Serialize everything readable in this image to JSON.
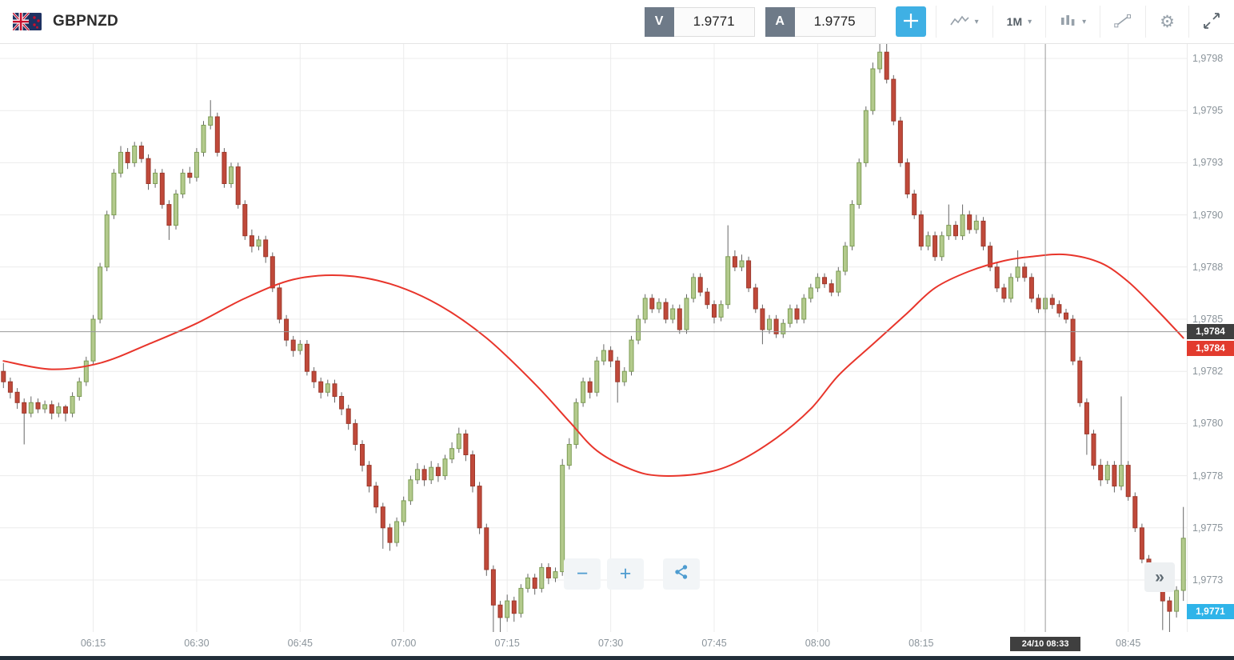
{
  "header": {
    "symbol": "GBPNZD",
    "sell_label": "V",
    "sell_price": "1.9771",
    "ask_label": "A",
    "ask_price": "1.9775",
    "timeframe": "1M"
  },
  "icons": {
    "caret": "▾",
    "gear": "⚙",
    "scroll_right": "»",
    "zoom_out": "−",
    "zoom_in": "+"
  },
  "chart_data": {
    "type": "candlestick",
    "symbol": "GBPNZD",
    "interval": "1M",
    "start_time": "06:02",
    "interval_minutes": 1,
    "price_base": 1.97,
    "price_unit": 0.0001,
    "note": "OHLC and pips values are pips above price_base: price = 1.97 + v/10000",
    "colors": {
      "up_fill": "#b3ca8c",
      "up_stroke": "#7d9d55",
      "down_fill": "#c0493a",
      "down_stroke": "#9c392c",
      "wick": "#666666",
      "ma_line": "#e8352b",
      "grid": "#ececec",
      "crosshair": "#999999",
      "badge_dark_bg": "#3f3f3f",
      "badge_red_bg": "#e23b2e",
      "badge_blue_bg": "#2fb4e9",
      "accent_blue": "#3fb0e4"
    },
    "y_axis": [
      {
        "label": "1,9798",
        "pips": 98.0
      },
      {
        "label": "1,9795",
        "pips": 95.5
      },
      {
        "label": "1,9793",
        "pips": 93.0
      },
      {
        "label": "1,9790",
        "pips": 90.5
      },
      {
        "label": "1,9788",
        "pips": 88.0
      },
      {
        "label": "1,9785",
        "pips": 85.5
      },
      {
        "label": "1,9782",
        "pips": 83.0
      },
      {
        "label": "1,9780",
        "pips": 80.5
      },
      {
        "label": "1,9778",
        "pips": 78.0
      },
      {
        "label": "1,9775",
        "pips": 75.5
      },
      {
        "label": "1,9773",
        "pips": 73.0
      }
    ],
    "x_axis_labels": [
      "06:15",
      "06:30",
      "06:45",
      "07:00",
      "07:15",
      "07:30",
      "07:45",
      "08:00",
      "08:15",
      "08:45"
    ],
    "x_grid": [
      "06:15",
      "06:30",
      "06:45",
      "07:00",
      "07:15",
      "07:30",
      "07:45",
      "08:00",
      "08:15",
      "08:30",
      "08:45"
    ],
    "crosshair": {
      "time": "08:33",
      "label": "24/10 08:33",
      "price_pips": 84.9,
      "price_label": "1,9784"
    },
    "red_marker": {
      "pips": 84.1,
      "label": "1,9784"
    },
    "sell_marker": {
      "pips": 71.5,
      "label": "1,9771"
    },
    "ma_line": {
      "name": "moving-average",
      "color": "#e8352b",
      "points": [
        [
          "06:02",
          83.5
        ],
        [
          "06:09",
          83.1
        ],
        [
          "06:16",
          83.4
        ],
        [
          "06:23",
          84.3
        ],
        [
          "06:30",
          85.3
        ],
        [
          "06:37",
          86.5
        ],
        [
          "06:44",
          87.4
        ],
        [
          "06:51",
          87.6
        ],
        [
          "06:58",
          87.2
        ],
        [
          "07:05",
          86.2
        ],
        [
          "07:12",
          84.6
        ],
        [
          "07:19",
          82.4
        ],
        [
          "07:24",
          80.6
        ],
        [
          "07:28",
          79.2
        ],
        [
          "07:33",
          78.3
        ],
        [
          "07:37",
          78.0
        ],
        [
          "07:43",
          78.1
        ],
        [
          "07:48",
          78.6
        ],
        [
          "07:54",
          79.8
        ],
        [
          "07:59",
          81.2
        ],
        [
          "08:03",
          82.8
        ],
        [
          "08:08",
          84.3
        ],
        [
          "08:13",
          85.8
        ],
        [
          "08:17",
          87.0
        ],
        [
          "08:22",
          87.8
        ],
        [
          "08:27",
          88.3
        ],
        [
          "08:31",
          88.5
        ],
        [
          "08:36",
          88.6
        ],
        [
          "08:41",
          88.2
        ],
        [
          "08:45",
          87.3
        ],
        [
          "08:49",
          86.0
        ],
        [
          "08:53",
          84.6
        ]
      ]
    },
    "candles": [
      [
        83.0,
        83.4,
        82.2,
        82.5
      ],
      [
        82.5,
        82.7,
        81.7,
        82.0
      ],
      [
        82.0,
        82.2,
        81.2,
        81.5
      ],
      [
        81.5,
        81.7,
        79.5,
        81.0
      ],
      [
        81.0,
        81.8,
        80.8,
        81.5
      ],
      [
        81.5,
        81.7,
        81.0,
        81.2
      ],
      [
        81.2,
        81.6,
        81.0,
        81.4
      ],
      [
        81.4,
        81.6,
        80.7,
        81.0
      ],
      [
        81.0,
        81.5,
        80.8,
        81.3
      ],
      [
        81.3,
        81.4,
        80.6,
        81.0
      ],
      [
        81.0,
        82.0,
        80.8,
        81.8
      ],
      [
        81.8,
        82.7,
        81.6,
        82.5
      ],
      [
        82.5,
        83.7,
        82.3,
        83.5
      ],
      [
        83.5,
        85.7,
        83.3,
        85.5
      ],
      [
        85.5,
        88.2,
        85.3,
        88.0
      ],
      [
        88.0,
        90.7,
        87.8,
        90.5
      ],
      [
        90.5,
        92.7,
        90.3,
        92.5
      ],
      [
        92.5,
        93.8,
        92.3,
        93.5
      ],
      [
        93.5,
        93.7,
        92.7,
        93.0
      ],
      [
        93.0,
        94.0,
        92.8,
        93.8
      ],
      [
        93.8,
        94.0,
        93.0,
        93.2
      ],
      [
        93.2,
        93.4,
        91.7,
        92.0
      ],
      [
        92.0,
        92.7,
        91.8,
        92.5
      ],
      [
        92.5,
        92.7,
        90.8,
        91.0
      ],
      [
        91.0,
        91.2,
        89.3,
        90.0
      ],
      [
        90.0,
        91.7,
        89.8,
        91.5
      ],
      [
        91.5,
        92.7,
        91.3,
        92.5
      ],
      [
        92.5,
        92.8,
        92.0,
        92.3
      ],
      [
        92.3,
        93.7,
        92.1,
        93.5
      ],
      [
        93.5,
        95.0,
        93.3,
        94.8
      ],
      [
        94.8,
        96.0,
        94.6,
        95.2
      ],
      [
        95.2,
        95.4,
        93.3,
        93.5
      ],
      [
        93.5,
        93.7,
        91.8,
        92.0
      ],
      [
        92.0,
        93.0,
        91.8,
        92.8
      ],
      [
        92.8,
        93.0,
        90.8,
        91.0
      ],
      [
        91.0,
        91.2,
        89.3,
        89.5
      ],
      [
        89.5,
        89.8,
        88.7,
        89.0
      ],
      [
        89.0,
        89.5,
        88.8,
        89.3
      ],
      [
        89.3,
        89.5,
        88.2,
        88.5
      ],
      [
        88.5,
        88.7,
        86.8,
        87.0
      ],
      [
        87.0,
        87.2,
        85.3,
        85.5
      ],
      [
        85.5,
        85.7,
        84.2,
        84.5
      ],
      [
        84.5,
        84.7,
        83.7,
        84.0
      ],
      [
        84.0,
        84.5,
        83.8,
        84.3
      ],
      [
        84.3,
        84.5,
        82.8,
        83.0
      ],
      [
        83.0,
        83.2,
        82.2,
        82.5
      ],
      [
        82.5,
        82.7,
        81.7,
        82.0
      ],
      [
        82.0,
        82.6,
        81.8,
        82.4
      ],
      [
        82.4,
        82.6,
        81.5,
        81.8
      ],
      [
        81.8,
        82.0,
        80.9,
        81.2
      ],
      [
        81.2,
        81.4,
        80.2,
        80.5
      ],
      [
        80.5,
        80.7,
        79.2,
        79.5
      ],
      [
        79.5,
        79.7,
        78.2,
        78.5
      ],
      [
        78.5,
        78.7,
        77.2,
        77.5
      ],
      [
        77.5,
        77.7,
        76.2,
        76.5
      ],
      [
        76.5,
        76.7,
        74.5,
        75.5
      ],
      [
        75.5,
        75.7,
        74.4,
        74.8
      ],
      [
        74.8,
        76.0,
        74.6,
        75.8
      ],
      [
        75.8,
        77.0,
        75.6,
        76.8
      ],
      [
        76.8,
        78.0,
        76.6,
        77.8
      ],
      [
        77.8,
        78.6,
        77.6,
        78.3
      ],
      [
        78.3,
        78.5,
        77.5,
        77.8
      ],
      [
        77.8,
        78.7,
        77.6,
        78.4
      ],
      [
        78.4,
        78.6,
        77.7,
        78.0
      ],
      [
        78.0,
        79.0,
        77.8,
        78.8
      ],
      [
        78.8,
        79.6,
        78.6,
        79.3
      ],
      [
        79.3,
        80.3,
        79.1,
        80.0
      ],
      [
        80.0,
        80.2,
        78.7,
        79.0
      ],
      [
        79.0,
        79.2,
        77.2,
        77.5
      ],
      [
        77.5,
        77.7,
        75.2,
        75.5
      ],
      [
        75.5,
        75.7,
        73.2,
        73.5
      ],
      [
        73.5,
        73.7,
        70.5,
        71.8
      ],
      [
        71.8,
        72.0,
        70.2,
        71.2
      ],
      [
        71.2,
        72.3,
        71.0,
        72.0
      ],
      [
        72.0,
        72.2,
        71.0,
        71.4
      ],
      [
        71.4,
        72.8,
        71.2,
        72.6
      ],
      [
        72.6,
        73.3,
        72.4,
        73.1
      ],
      [
        73.1,
        73.3,
        72.3,
        72.6
      ],
      [
        72.6,
        73.8,
        72.4,
        73.6
      ],
      [
        73.6,
        73.8,
        72.8,
        73.1
      ],
      [
        73.1,
        73.6,
        72.9,
        73.4
      ],
      [
        73.4,
        78.8,
        73.2,
        78.5
      ],
      [
        78.5,
        79.8,
        78.3,
        79.5
      ],
      [
        79.5,
        81.7,
        79.3,
        81.5
      ],
      [
        81.5,
        82.7,
        81.3,
        82.5
      ],
      [
        82.5,
        82.7,
        81.7,
        82.0
      ],
      [
        82.0,
        83.7,
        81.8,
        83.5
      ],
      [
        83.5,
        84.3,
        83.3,
        84.0
      ],
      [
        84.0,
        84.2,
        83.2,
        83.5
      ],
      [
        83.5,
        83.7,
        81.5,
        82.5
      ],
      [
        82.5,
        83.2,
        82.3,
        83.0
      ],
      [
        83.0,
        84.7,
        82.8,
        84.5
      ],
      [
        84.5,
        85.7,
        84.3,
        85.5
      ],
      [
        85.5,
        86.7,
        85.3,
        86.5
      ],
      [
        86.5,
        86.7,
        85.8,
        86.0
      ],
      [
        86.0,
        86.5,
        85.8,
        86.3
      ],
      [
        86.3,
        86.5,
        85.3,
        85.5
      ],
      [
        85.5,
        86.2,
        85.3,
        86.0
      ],
      [
        86.0,
        86.2,
        84.8,
        85.0
      ],
      [
        85.0,
        86.7,
        84.8,
        86.5
      ],
      [
        86.5,
        87.7,
        86.3,
        87.5
      ],
      [
        87.5,
        87.7,
        86.6,
        86.8
      ],
      [
        86.8,
        87.0,
        86.0,
        86.2
      ],
      [
        86.2,
        86.4,
        85.3,
        85.6
      ],
      [
        85.6,
        86.4,
        85.4,
        86.2
      ],
      [
        86.2,
        90.0,
        86.0,
        88.5
      ],
      [
        88.5,
        88.8,
        87.8,
        88.0
      ],
      [
        88.0,
        88.6,
        87.8,
        88.3
      ],
      [
        88.3,
        88.5,
        86.8,
        87.0
      ],
      [
        87.0,
        87.2,
        85.8,
        86.0
      ],
      [
        86.0,
        86.2,
        84.3,
        85.0
      ],
      [
        85.0,
        85.7,
        84.8,
        85.5
      ],
      [
        85.5,
        85.7,
        84.6,
        84.8
      ],
      [
        84.8,
        85.5,
        84.6,
        85.3
      ],
      [
        85.3,
        86.2,
        85.1,
        86.0
      ],
      [
        86.0,
        86.2,
        85.3,
        85.5
      ],
      [
        85.5,
        86.7,
        85.3,
        86.5
      ],
      [
        86.5,
        87.2,
        86.3,
        87.0
      ],
      [
        87.0,
        87.7,
        86.8,
        87.5
      ],
      [
        87.5,
        87.7,
        87.0,
        87.2
      ],
      [
        87.2,
        87.4,
        86.6,
        86.8
      ],
      [
        86.8,
        88.0,
        86.6,
        87.8
      ],
      [
        87.8,
        89.2,
        87.6,
        89.0
      ],
      [
        89.0,
        91.2,
        88.8,
        91.0
      ],
      [
        91.0,
        93.2,
        90.8,
        93.0
      ],
      [
        93.0,
        95.7,
        92.8,
        95.5
      ],
      [
        95.5,
        97.8,
        95.3,
        97.5
      ],
      [
        97.5,
        98.7,
        97.3,
        98.3
      ],
      [
        98.3,
        98.7,
        96.8,
        97.0
      ],
      [
        97.0,
        97.2,
        94.8,
        95.0
      ],
      [
        95.0,
        95.2,
        92.8,
        93.0
      ],
      [
        93.0,
        93.2,
        91.3,
        91.5
      ],
      [
        91.5,
        91.7,
        90.3,
        90.5
      ],
      [
        90.5,
        90.7,
        88.8,
        89.0
      ],
      [
        89.0,
        89.7,
        88.8,
        89.5
      ],
      [
        89.5,
        89.7,
        88.3,
        88.5
      ],
      [
        88.5,
        89.7,
        88.3,
        89.5
      ],
      [
        89.5,
        91.0,
        89.3,
        90.0
      ],
      [
        90.0,
        90.2,
        89.3,
        89.5
      ],
      [
        89.5,
        91.0,
        89.3,
        90.5
      ],
      [
        90.5,
        90.7,
        89.6,
        89.8
      ],
      [
        89.8,
        90.5,
        89.6,
        90.2
      ],
      [
        90.2,
        90.4,
        88.8,
        89.0
      ],
      [
        89.0,
        89.2,
        87.8,
        88.0
      ],
      [
        88.0,
        88.2,
        86.8,
        87.0
      ],
      [
        87.0,
        87.2,
        86.3,
        86.5
      ],
      [
        86.5,
        87.7,
        86.3,
        87.5
      ],
      [
        87.5,
        88.8,
        87.3,
        88.0
      ],
      [
        88.0,
        88.2,
        87.3,
        87.5
      ],
      [
        87.5,
        87.7,
        86.3,
        86.5
      ],
      [
        86.5,
        86.7,
        85.8,
        86.0
      ],
      [
        86.0,
        86.7,
        85.8,
        86.5
      ],
      [
        86.5,
        86.7,
        86.0,
        86.2
      ],
      [
        86.2,
        86.4,
        85.6,
        85.8
      ],
      [
        85.8,
        86.0,
        85.3,
        85.5
      ],
      [
        85.5,
        85.7,
        83.3,
        83.5
      ],
      [
        83.5,
        83.7,
        81.3,
        81.5
      ],
      [
        81.5,
        81.7,
        79.0,
        80.0
      ],
      [
        80.0,
        80.2,
        78.3,
        78.5
      ],
      [
        78.5,
        78.8,
        77.5,
        77.8
      ],
      [
        77.8,
        78.7,
        77.6,
        78.5
      ],
      [
        78.5,
        78.7,
        77.2,
        77.5
      ],
      [
        77.5,
        81.8,
        77.3,
        78.5
      ],
      [
        78.5,
        78.7,
        76.8,
        77.0
      ],
      [
        77.0,
        77.2,
        75.3,
        75.5
      ],
      [
        75.5,
        75.7,
        73.8,
        74.0
      ],
      [
        74.0,
        74.2,
        72.7,
        73.0
      ],
      [
        73.0,
        73.7,
        72.8,
        73.5
      ],
      [
        73.5,
        73.7,
        70.6,
        72.0
      ],
      [
        72.0,
        72.2,
        70.3,
        71.5
      ],
      [
        71.5,
        72.7,
        71.2,
        72.5
      ],
      [
        72.5,
        76.5,
        72.0,
        75.0
      ]
    ]
  }
}
